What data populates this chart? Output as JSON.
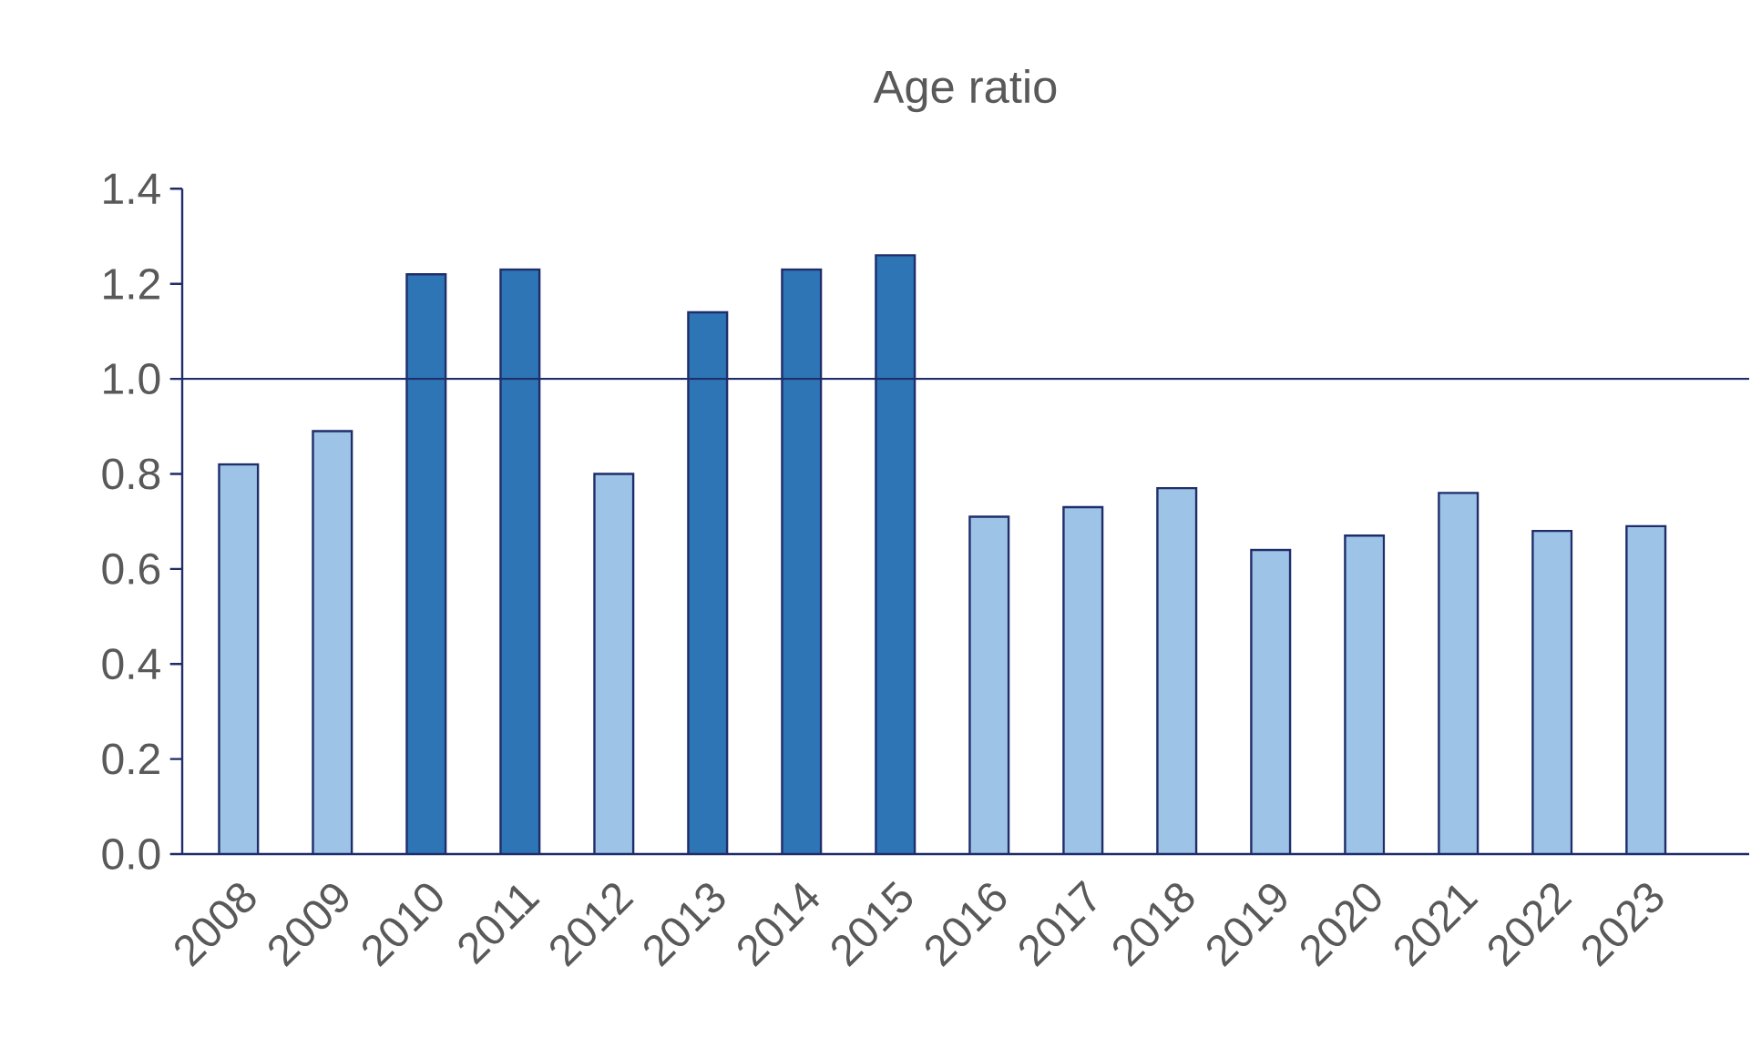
{
  "chart_data": {
    "type": "bar",
    "title": "Age ratio",
    "categories": [
      "2008",
      "2009",
      "2010",
      "2011",
      "2012",
      "2013",
      "2014",
      "2015",
      "2016",
      "2017",
      "2018",
      "2019",
      "2020",
      "2021",
      "2022",
      "2023"
    ],
    "values": [
      0.82,
      0.89,
      1.22,
      1.23,
      0.8,
      1.14,
      1.23,
      1.26,
      0.71,
      0.73,
      0.77,
      0.64,
      0.67,
      0.76,
      0.68,
      0.69
    ],
    "colors": [
      "#9dc3e6",
      "#9dc3e6",
      "#2e75b6",
      "#2e75b6",
      "#9dc3e6",
      "#2e75b6",
      "#2e75b6",
      "#2e75b6",
      "#9dc3e6",
      "#9dc3e6",
      "#9dc3e6",
      "#9dc3e6",
      "#9dc3e6",
      "#9dc3e6",
      "#9dc3e6",
      "#9dc3e6"
    ],
    "ylim": [
      0,
      1.4
    ],
    "yticks": [
      {
        "value": 0,
        "label": "0.0"
      },
      {
        "value": 0.2,
        "label": "0.2"
      },
      {
        "value": 0.4,
        "label": "0.4"
      },
      {
        "value": 0.6,
        "label": "0.6"
      },
      {
        "value": 0.8,
        "label": "0.8"
      },
      {
        "value": 1.0,
        "label": "1.0"
      },
      {
        "value": 1.2,
        "label": "1.2"
      },
      {
        "value": 1.4,
        "label": "1.4"
      }
    ],
    "ref_lines": [
      {
        "axis": "y",
        "value": 1.0,
        "color": "#1f2d6b"
      }
    ]
  }
}
